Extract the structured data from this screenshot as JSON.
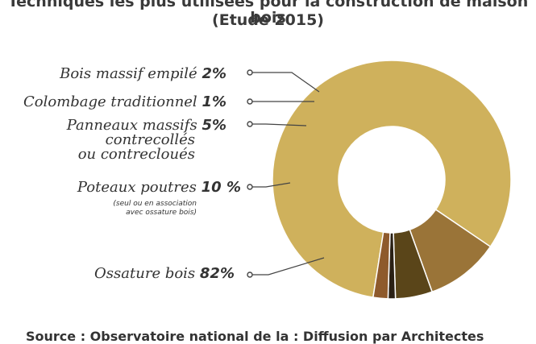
{
  "chart_data": {
    "type": "pie",
    "title": "Techniques les plus utilisées pour la construction de maison bois",
    "subtitle": "(Etude 2015)",
    "slices": [
      {
        "label": "Ossature bois",
        "value": 82,
        "value_label": "82%",
        "color": "#cfb15c"
      },
      {
        "label": "Poteaux poutres",
        "value": 10,
        "value_label": "10 %",
        "color": "#9a7438",
        "note_line1": "(seul ou en association",
        "note_line2": "avec ossature bois)"
      },
      {
        "label_line1": "Panneaux massifs",
        "label_line2": "contrecollés",
        "label_line3": "ou contrecloués",
        "value": 5,
        "value_label": "5%",
        "color": "#5a4519"
      },
      {
        "label": "Colombage traditionnel",
        "value": 1,
        "value_label": "1%",
        "color": "#2a2014"
      },
      {
        "label": "Bois massif empilé",
        "value": 2,
        "value_label": "2%",
        "color": "#8e5a2c"
      }
    ],
    "legend": "none"
  },
  "source_text": "Source : Observatoire national de la : Diffusion par Architectes"
}
